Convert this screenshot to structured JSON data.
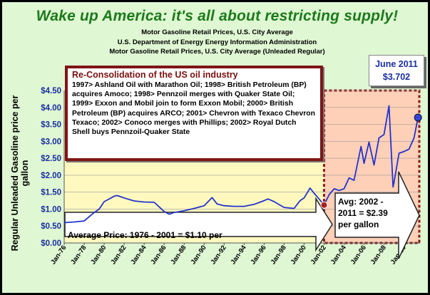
{
  "chart_data": {
    "type": "line",
    "title": "Wake up America: it's all about restricting supply!",
    "subtitles": [
      "Motor Gasoline Retail Prices, U.S. City Average",
      "U.S. Department of Energy Energy Information Administration",
      "Motor Gasoline Retail Prices, U.S. City Average (Unleaded Regular)"
    ],
    "ylabel": "Regular Unleaded Gasoline price per gallon",
    "xlabel": "",
    "ylim": [
      0,
      4.5
    ],
    "yticks": [
      "$0.00",
      "$0.50",
      "$1.00",
      "$1.50",
      "$2.00",
      "$2.50",
      "$3.00",
      "$3.50",
      "$4.00",
      "$4.50"
    ],
    "xticks": [
      "Jan-76",
      "Jan-78",
      "Jan-80",
      "Jan-82",
      "Jan-84",
      "Jan-86",
      "Jan-88",
      "Jan-90",
      "Jan-92",
      "Jan-94",
      "Jan-96",
      "Jan-98",
      "Jan-00",
      "Jan-02",
      "Jan-04",
      "Jan-06",
      "Jan-08",
      "Jan-10"
    ],
    "grid": true,
    "series": [
      {
        "color": "#2233cc",
        "x": [
          1976.0,
          1977.0,
          1978.0,
          1979.0,
          1979.5,
          1980.0,
          1981.0,
          1981.3,
          1982.0,
          1983.0,
          1984.0,
          1985.0,
          1986.0,
          1986.5,
          1987.0,
          1988.0,
          1989.0,
          1990.0,
          1990.8,
          1991.3,
          1992.0,
          1993.0,
          1994.0,
          1995.0,
          1996.0,
          1996.4,
          1997.0,
          1998.0,
          1999.0,
          1999.6,
          2000.0,
          2000.6,
          2001.0,
          2001.5,
          2002.0,
          2002.5,
          2003.0,
          2003.5,
          2004.0,
          2004.5,
          2005.0,
          2005.7,
          2006.0,
          2006.5,
          2007.0,
          2007.5,
          2008.0,
          2008.5,
          2008.9,
          2009.0,
          2009.5,
          2010.0,
          2010.5,
          2011.0,
          2011.4
        ],
        "y": [
          0.6,
          0.62,
          0.65,
          0.9,
          1.0,
          1.22,
          1.38,
          1.4,
          1.33,
          1.24,
          1.21,
          1.2,
          0.93,
          0.85,
          0.9,
          0.95,
          1.02,
          1.1,
          1.34,
          1.15,
          1.1,
          1.08,
          1.08,
          1.14,
          1.25,
          1.3,
          1.22,
          1.05,
          1.02,
          1.25,
          1.33,
          1.62,
          1.47,
          1.3,
          1.12,
          1.42,
          1.6,
          1.55,
          1.6,
          1.92,
          1.85,
          2.85,
          2.35,
          2.98,
          2.3,
          3.1,
          3.2,
          4.05,
          1.65,
          1.8,
          2.65,
          2.7,
          2.77,
          3.1,
          3.702
        ]
      }
    ],
    "annotations": {
      "consolidation_heading": "Re-Consolidation of the US oil industry",
      "consolidation_text": "1997> Ashland Oil with Marathon Oil; 1998> British Petroleum (BP) acquires Amoco; 1998> Pennzoil merges with Quaker State Oil; 1999> Exxon and Mobil join to form Exxon Mobil; 2000> British Petroleum (BP) acquires ARCO; 2001> Chevron with Texaco Chevron Texaco; 2002> Conoco merges with Phillips; 2002> Royal Dutch Shell buys Pennzoil-Quaker State",
      "june_month": "June 2011",
      "june_price": "$3.702",
      "avg_left": "Average Price: 1976 - 2001 = $1.10 per",
      "avg_right": "Avg: 2002 - 2011 = $2.39 per gallon",
      "avg_left_value": 1.1,
      "avg_right_value": 2.39
    },
    "shaded_region": {
      "x_start": 2002,
      "x_end": 2011.6
    },
    "markers": [
      {
        "x": 2002.0,
        "y": 1.12
      },
      {
        "x": 2011.4,
        "y": 3.702
      }
    ],
    "colors": {
      "plot_bg": "#fff9c0",
      "shade": "#ffd0b8",
      "shade_border": "#8a1a1a",
      "arrow": "#ffffff",
      "marker": "#3344dd",
      "marker_left": "#aa2222"
    }
  }
}
